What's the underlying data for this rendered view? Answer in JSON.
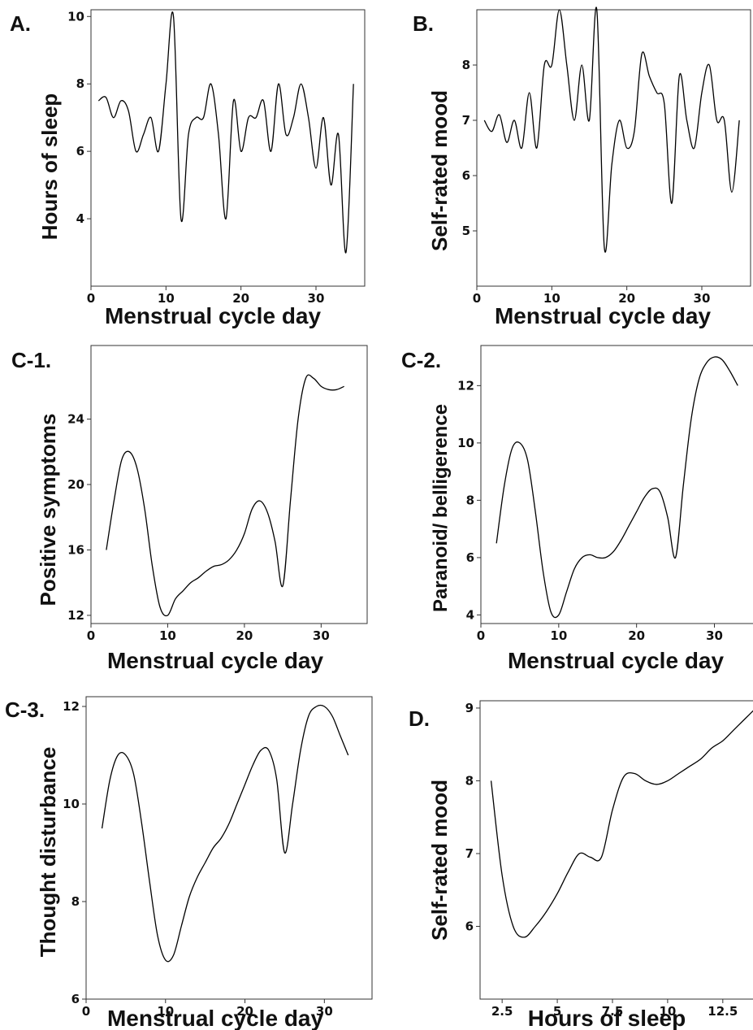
{
  "chart_data": [
    {
      "panel": "A.",
      "type": "line",
      "xlabel": "Menstrual cycle day",
      "ylabel": "Hours of sleep",
      "xlim": [
        0,
        36.5
      ],
      "ylim": [
        2,
        10.2
      ],
      "xticks": [
        0,
        10,
        20,
        30
      ],
      "yticks": [
        4,
        6,
        8,
        10
      ],
      "x": [
        1,
        2,
        3,
        4,
        5,
        6,
        7,
        8,
        9,
        10,
        11,
        12,
        13,
        14,
        15,
        16,
        17,
        18,
        19,
        20,
        21,
        22,
        23,
        24,
        25,
        26,
        27,
        28,
        29,
        30,
        31,
        32,
        33,
        34,
        35
      ],
      "y": [
        7.5,
        7.6,
        7,
        7.5,
        7.2,
        6,
        6.5,
        7,
        6,
        8,
        10,
        4,
        6.5,
        7,
        7,
        8,
        6.5,
        4,
        7.5,
        6,
        7,
        7,
        7.5,
        6,
        8,
        6.5,
        7,
        8,
        7,
        5.5,
        7,
        5,
        6.5,
        3,
        8
      ],
      "grid": false
    },
    {
      "panel": "B.",
      "type": "line",
      "xlabel": "Menstrual cycle day",
      "ylabel": "Self-rated mood",
      "xlim": [
        0,
        36.5
      ],
      "ylim": [
        4,
        9.0
      ],
      "xticks": [
        0,
        10,
        20,
        30
      ],
      "yticks": [
        5,
        6,
        7,
        8
      ],
      "x": [
        1,
        2,
        3,
        4,
        5,
        6,
        7,
        8,
        9,
        10,
        11,
        12,
        13,
        14,
        15,
        16,
        17,
        18,
        19,
        20,
        21,
        22,
        23,
        24,
        25,
        26,
        27,
        28,
        29,
        30,
        31,
        32,
        33,
        34,
        35
      ],
      "y": [
        7,
        6.8,
        7.1,
        6.6,
        7,
        6.5,
        7.5,
        6.5,
        8,
        8,
        9,
        8,
        7,
        8,
        7,
        9,
        4.7,
        6.2,
        7,
        6.5,
        6.8,
        8.2,
        7.8,
        7.5,
        7.3,
        5.5,
        7.8,
        7,
        6.5,
        7.5,
        8,
        7,
        7,
        5.7,
        7
      ],
      "grid": false
    },
    {
      "panel": "C-1.",
      "type": "line",
      "xlabel": "Menstrual cycle day",
      "ylabel": "Positive symptoms",
      "xlim": [
        0,
        36
      ],
      "ylim": [
        11.5,
        28.5
      ],
      "xticks": [
        0,
        10,
        20,
        30
      ],
      "yticks": [
        12,
        16,
        20,
        24
      ],
      "x": [
        2,
        3,
        4,
        5,
        6,
        7,
        8,
        9,
        10,
        11,
        12,
        13,
        14,
        15,
        16,
        17,
        18,
        19,
        20,
        21,
        22,
        23,
        24,
        25,
        26,
        27,
        28,
        29,
        30,
        31,
        32,
        33
      ],
      "y": [
        16,
        19,
        21.5,
        22,
        21,
        18.5,
        15,
        12.5,
        12,
        13,
        13.5,
        14,
        14.3,
        14.7,
        15,
        15.1,
        15.4,
        16,
        17,
        18.5,
        19,
        18.3,
        16.5,
        13.8,
        19,
        24,
        26.5,
        26.5,
        26,
        25.8,
        25.8,
        26
      ],
      "grid": false
    },
    {
      "panel": "C-2.",
      "type": "line",
      "xlabel": "Menstrual cycle day",
      "ylabel": "Paranoid/ belligerence",
      "xlim": [
        0,
        36
      ],
      "ylim": [
        3.7,
        13.4
      ],
      "xticks": [
        0,
        10,
        20,
        30
      ],
      "yticks": [
        4,
        6,
        8,
        10,
        12
      ],
      "x": [
        2,
        3,
        4,
        5,
        6,
        7,
        8,
        9,
        10,
        11,
        12,
        13,
        14,
        15,
        16,
        17,
        18,
        19,
        20,
        21,
        22,
        23,
        24,
        25,
        26,
        27,
        28,
        29,
        30,
        31,
        32,
        33
      ],
      "y": [
        6.5,
        8.5,
        9.8,
        10,
        9.4,
        7.6,
        5.5,
        4.1,
        4,
        4.8,
        5.6,
        6,
        6.1,
        6,
        6,
        6.2,
        6.6,
        7.1,
        7.6,
        8.1,
        8.4,
        8.3,
        7.4,
        6,
        8.5,
        10.8,
        12.2,
        12.8,
        13,
        12.9,
        12.5,
        12
      ],
      "grid": false
    },
    {
      "panel": "C-3.",
      "type": "line",
      "xlabel": "Menstrual cycle day",
      "ylabel": "Thought disturbance",
      "xlim": [
        0,
        36
      ],
      "ylim": [
        6,
        12.2
      ],
      "xticks": [
        0,
        10,
        20,
        30
      ],
      "yticks": [
        6,
        8,
        10,
        12
      ],
      "x": [
        2,
        3,
        4,
        5,
        6,
        7,
        8,
        9,
        10,
        11,
        12,
        13,
        14,
        15,
        16,
        17,
        18,
        19,
        20,
        21,
        22,
        23,
        24,
        25,
        26,
        27,
        28,
        29,
        30,
        31,
        32,
        33
      ],
      "y": [
        9.5,
        10.5,
        11,
        11,
        10.6,
        9.6,
        8.4,
        7.3,
        6.8,
        6.9,
        7.5,
        8.1,
        8.5,
        8.8,
        9.1,
        9.3,
        9.6,
        10,
        10.4,
        10.8,
        11.1,
        11.1,
        10.5,
        9,
        10,
        11.1,
        11.8,
        12,
        12,
        11.8,
        11.4,
        11
      ],
      "grid": false
    },
    {
      "panel": "D.",
      "type": "line",
      "xlabel": "Hours of sleep",
      "ylabel": "Self-rated mood",
      "xlim": [
        1.5,
        14.2
      ],
      "ylim": [
        5.0,
        9.1
      ],
      "xticks": [
        2.5,
        5,
        7.5,
        10,
        12.5
      ],
      "xticklabels": [
        "2.5",
        "5",
        "7.5",
        "10",
        "12.5"
      ],
      "yticks": [
        6,
        7,
        8,
        9
      ],
      "x": [
        2,
        2.5,
        3,
        3.5,
        4,
        4.5,
        5,
        5.5,
        6,
        6.5,
        7,
        7.5,
        8,
        8.5,
        9,
        9.5,
        10,
        10.5,
        11,
        11.5,
        12,
        12.5,
        13,
        13.5,
        14
      ],
      "y": [
        8,
        6.7,
        6,
        5.85,
        6,
        6.2,
        6.45,
        6.75,
        7,
        6.95,
        6.95,
        7.6,
        8.05,
        8.1,
        8,
        7.95,
        8,
        8.1,
        8.2,
        8.3,
        8.45,
        8.55,
        8.7,
        8.85,
        9
      ],
      "grid": false
    }
  ]
}
